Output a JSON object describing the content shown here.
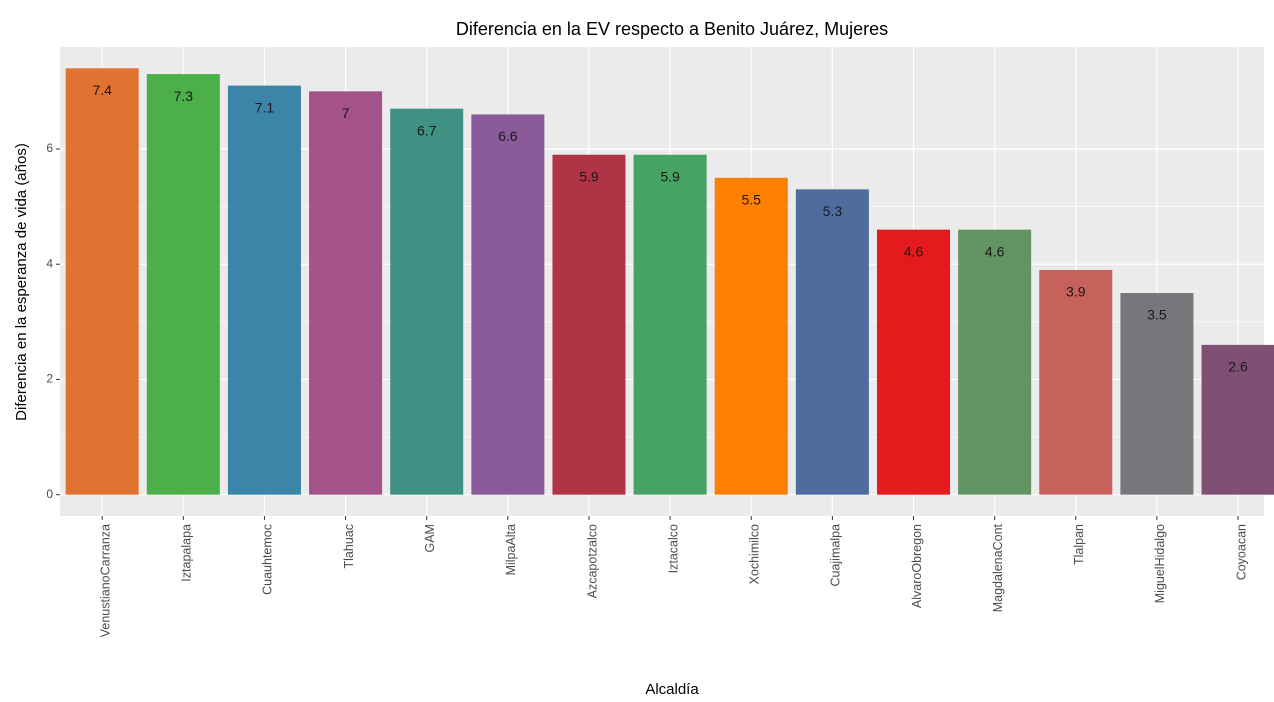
{
  "chart_data": {
    "type": "bar",
    "title": "Diferencia en la EV respecto a Benito Juárez, Mujeres",
    "x_label": "Alcaldía",
    "y_label": "Diferencia en la esperanza de vida (años)",
    "categories": [
      "VenustianoCarranza",
      "Iztapalapa",
      "Cuauhtemoc",
      "Tlahuac",
      "GAM",
      "MilpaAlta",
      "Azcapotzalco",
      "Iztacalco",
      "Xochimilco",
      "Cuajimalpa",
      "AlvaroObregon",
      "MagdalenaCont",
      "Tlalpan",
      "MiguelHidalgo",
      "Coyoacan"
    ],
    "values": [
      7.4,
      7.3,
      7.1,
      7,
      6.7,
      6.6,
      5.9,
      5.9,
      5.5,
      5.3,
      4.6,
      4.6,
      3.9,
      3.5,
      2.6
    ],
    "colors": [
      "#e07232",
      "#4daf4a",
      "#3a85a8",
      "#a3528a",
      "#3f9283",
      "#8b5a9b",
      "#b03446",
      "#47a364",
      "#ff7f00",
      "#4e6d9e",
      "#e41a1c",
      "#629363",
      "#c7615c",
      "#77767a",
      "#7f5073"
    ],
    "ylim": [
      -0.37,
      7.77
    ],
    "yticks": [
      0,
      2,
      4,
      6
    ],
    "grid": true
  }
}
